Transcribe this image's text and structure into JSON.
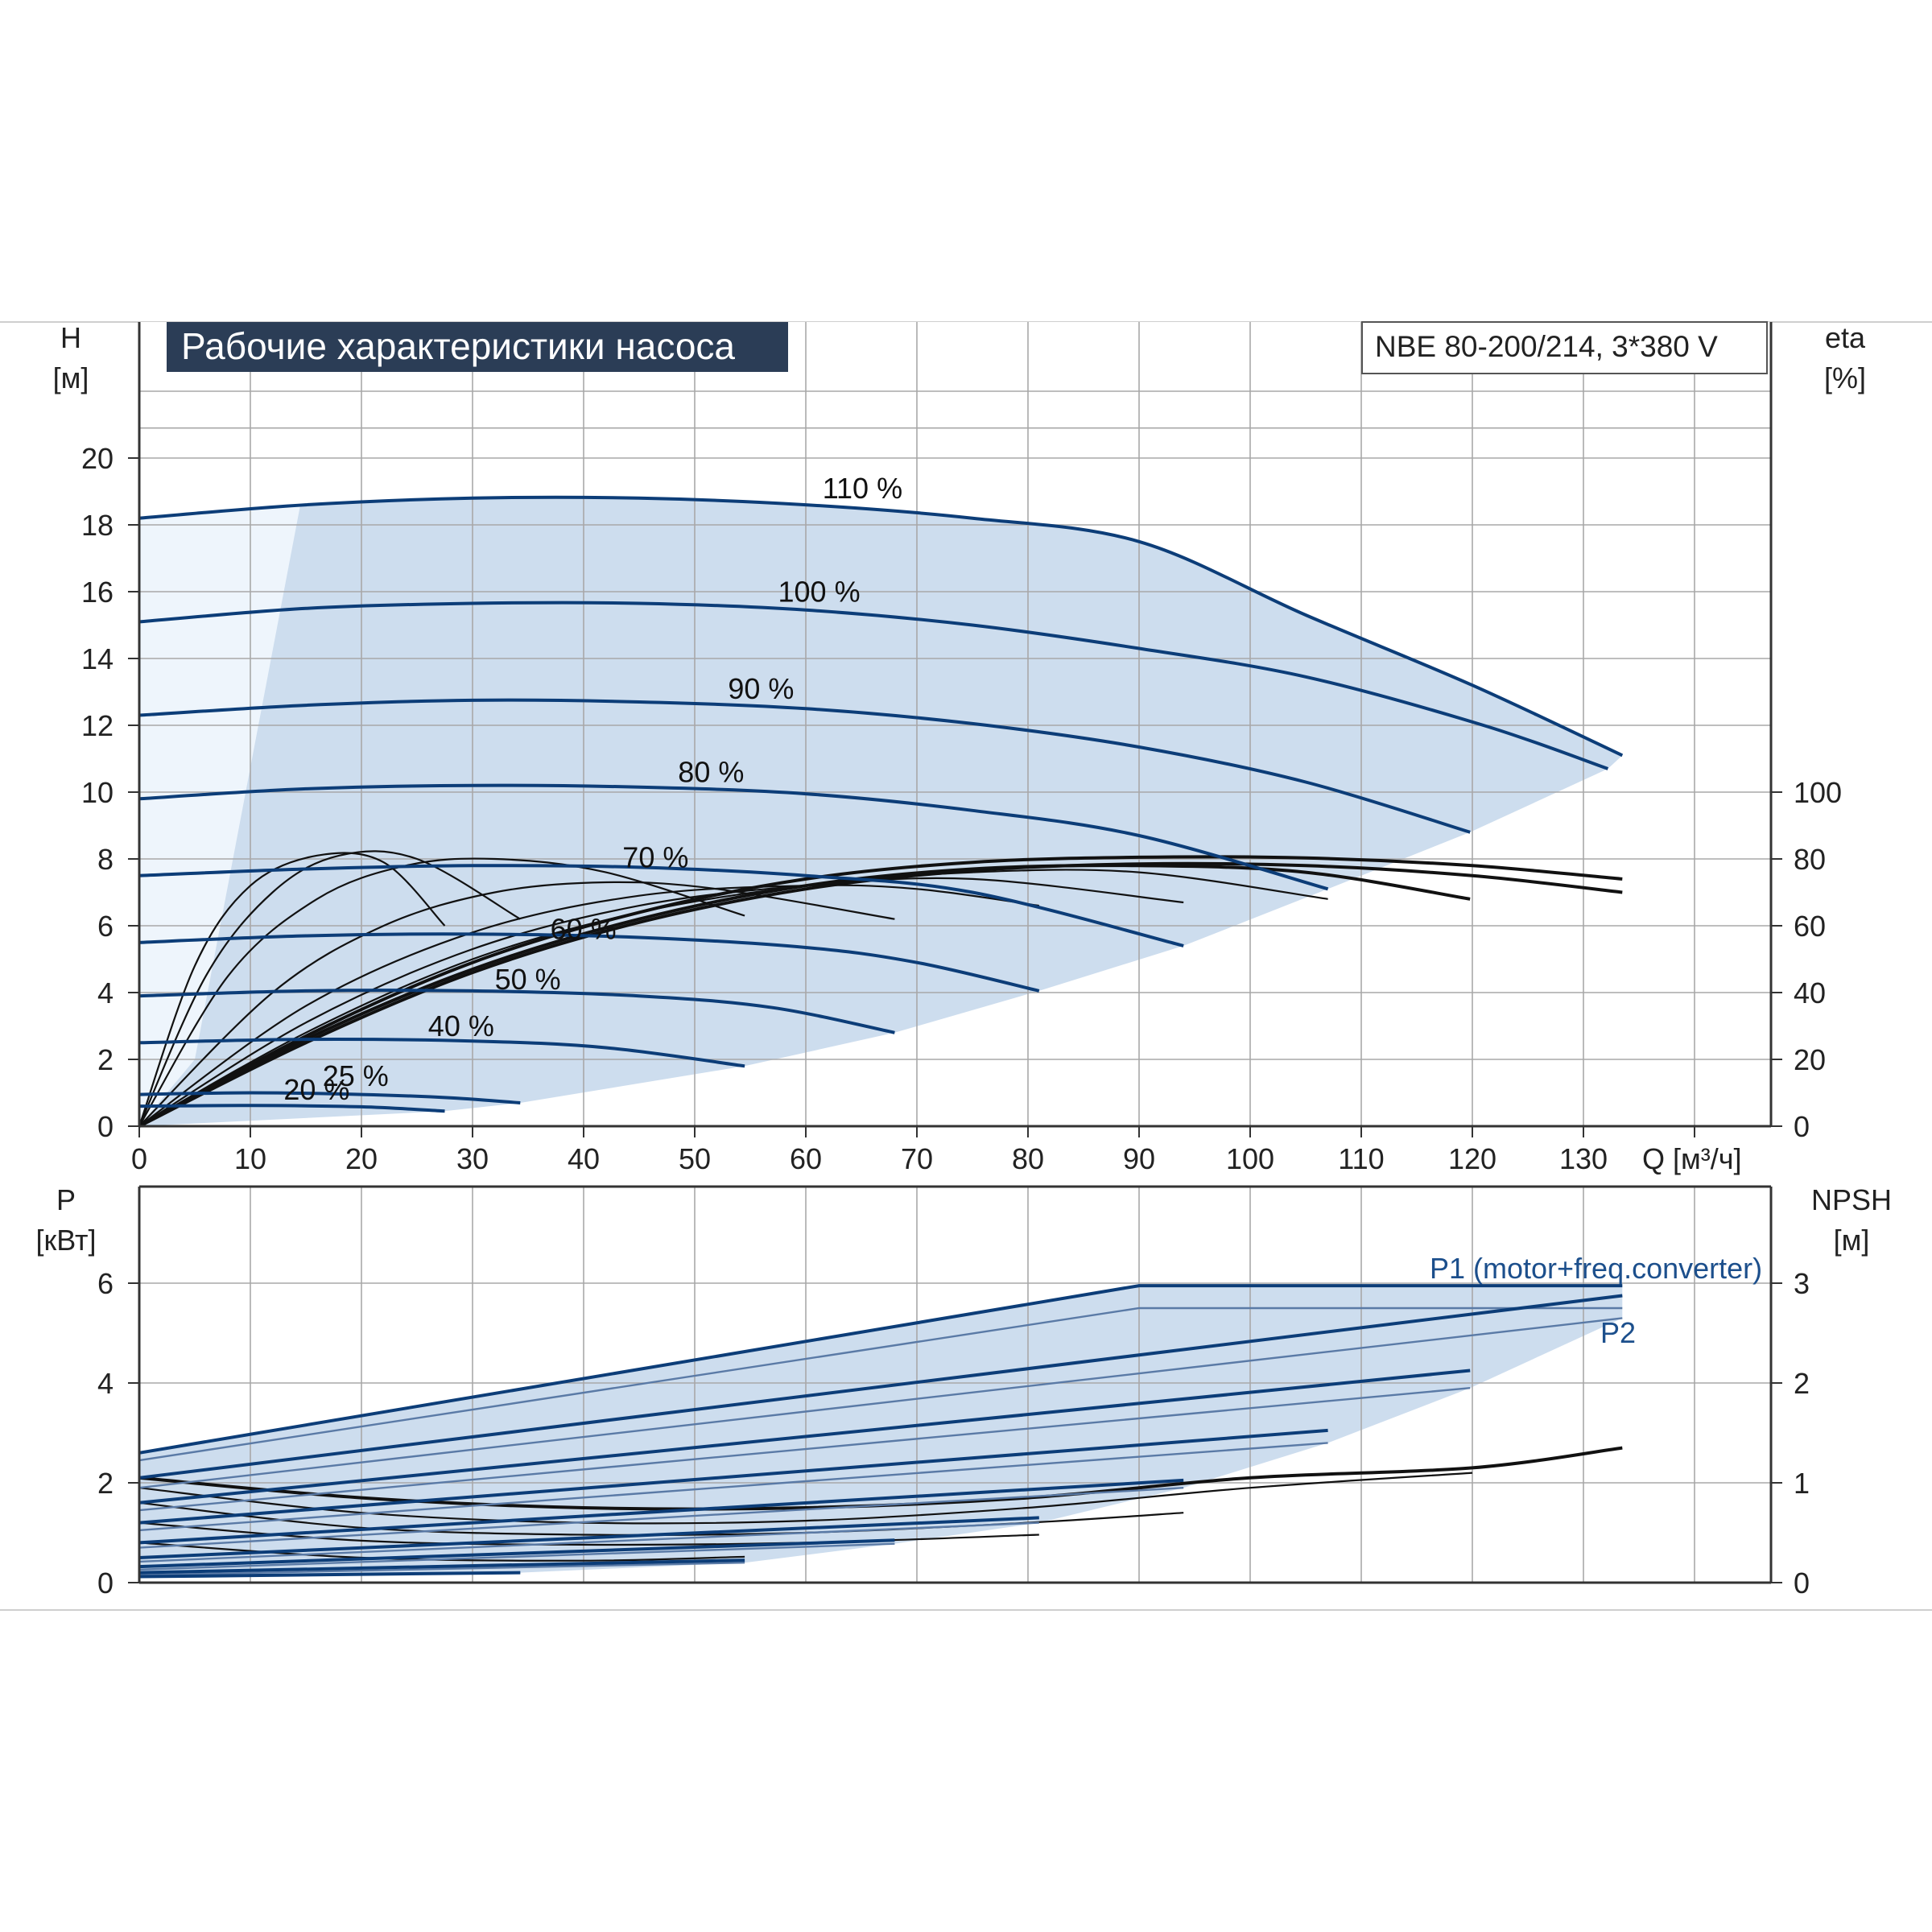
{
  "colors": {
    "curve_blue": "#0c3d78",
    "region_fill": "#cdddee",
    "region_left": "#eef5fc",
    "grid": "#a8a8a8",
    "title_bg": "#2b3d56",
    "eff_black": "#111111"
  },
  "chart_data": [
    {
      "type": "line",
      "title": "Рабочие характеристики насоса",
      "model_label": "NBE 80-200/214, 3*380 V",
      "ylabel_top": "H",
      "ylabel_unit": "[м]",
      "y2label_top": "eta",
      "y2label_unit": "[%]",
      "xlabel": "Q [м³/ч]",
      "xlim": [
        0,
        146
      ],
      "ylim": [
        0,
        20
      ],
      "y2lim": [
        0,
        100
      ],
      "x_ticks": [
        0,
        10,
        20,
        30,
        40,
        50,
        60,
        70,
        80,
        90,
        100,
        110,
        120,
        130
      ],
      "y_ticks": [
        0,
        2,
        4,
        6,
        8,
        10,
        12,
        14,
        16,
        18,
        20
      ],
      "y2_ticks": [
        0,
        20,
        40,
        60,
        80,
        100
      ],
      "grid": true,
      "series": [
        {
          "name": "110 %",
          "x": [
            0,
            15,
            30,
            45,
            60,
            75,
            90,
            105,
            120,
            133.5
          ],
          "y": [
            18.2,
            18.6,
            18.8,
            18.8,
            18.6,
            18.2,
            17.5,
            15.3,
            13.2,
            11.1
          ]
        },
        {
          "name": "100 %",
          "x": [
            0,
            15,
            30,
            45,
            60,
            75,
            90,
            105,
            121,
            132.2
          ],
          "y": [
            15.1,
            15.5,
            15.65,
            15.65,
            15.45,
            15.0,
            14.3,
            13.45,
            12.0,
            10.7
          ]
        },
        {
          "name": "90 %",
          "x": [
            0,
            15,
            30,
            45,
            60,
            75,
            90,
            105,
            119.8
          ],
          "y": [
            12.3,
            12.6,
            12.75,
            12.7,
            12.5,
            12.05,
            11.35,
            10.3,
            8.8
          ]
        },
        {
          "name": "80 %",
          "x": [
            0,
            15,
            30,
            45,
            60,
            75,
            90,
            107
          ],
          "y": [
            9.8,
            10.1,
            10.2,
            10.15,
            9.95,
            9.45,
            8.7,
            7.1
          ]
        },
        {
          "name": "70 %",
          "x": [
            0,
            15,
            30,
            45,
            60,
            75,
            94
          ],
          "y": [
            7.5,
            7.7,
            7.8,
            7.75,
            7.5,
            7.0,
            5.4
          ]
        },
        {
          "name": "60 %",
          "x": [
            0,
            15,
            30,
            45,
            60,
            70,
            81
          ],
          "y": [
            5.5,
            5.7,
            5.75,
            5.65,
            5.35,
            4.9,
            4.05
          ]
        },
        {
          "name": "50 %",
          "x": [
            0,
            15,
            30,
            45,
            57,
            68
          ],
          "y": [
            3.9,
            4.05,
            4.05,
            3.9,
            3.55,
            2.8
          ]
        },
        {
          "name": "40 %",
          "x": [
            0,
            15,
            30,
            42,
            54.5
          ],
          "y": [
            2.5,
            2.6,
            2.55,
            2.35,
            1.8
          ]
        },
        {
          "name": "25 %",
          "x": [
            0,
            10,
            20,
            28,
            34.3
          ],
          "y": [
            0.95,
            1.0,
            0.95,
            0.85,
            0.7
          ]
        },
        {
          "name": "20 %",
          "x": [
            0,
            10,
            20,
            27.5
          ],
          "y": [
            0.6,
            0.62,
            0.58,
            0.45
          ]
        }
      ],
      "efficiency": [
        {
          "x": [
            0,
            15,
            30,
            45,
            60,
            75,
            90,
            105,
            120,
            133.5
          ],
          "y": [
            0,
            27,
            49,
            64,
            74,
            79,
            80.5,
            80.3,
            78,
            74
          ]
        },
        {
          "x": [
            0,
            15,
            30,
            45,
            60,
            75,
            90,
            105,
            120,
            133.5
          ],
          "y": [
            0,
            25,
            46,
            61,
            71,
            76.5,
            78.5,
            78,
            75,
            70
          ]
        },
        {
          "x": [
            0,
            15,
            30,
            45,
            60,
            75,
            90,
            105,
            119.8
          ],
          "y": [
            0,
            26,
            47,
            62,
            72,
            77,
            78,
            76,
            68
          ]
        },
        {
          "x": [
            0,
            15,
            30,
            45,
            60,
            75,
            90,
            107
          ],
          "y": [
            0,
            28,
            50,
            64,
            72,
            76,
            76,
            68
          ]
        },
        {
          "x": [
            0,
            15,
            30,
            45,
            60,
            75,
            94
          ],
          "y": [
            0,
            31,
            53,
            66,
            72,
            74,
            67
          ]
        },
        {
          "x": [
            0,
            15,
            30,
            45,
            60,
            70,
            81
          ],
          "y": [
            0,
            36,
            58,
            69,
            72,
            71,
            66
          ]
        },
        {
          "x": [
            0,
            12,
            22,
            32,
            42,
            52,
            68
          ],
          "y": [
            0,
            40,
            60,
            70,
            73,
            71,
            62
          ]
        },
        {
          "x": [
            0,
            8,
            16,
            24,
            32,
            42,
            54.5
          ],
          "y": [
            0,
            45,
            68,
            78,
            80,
            76,
            63
          ]
        },
        {
          "x": [
            0,
            6,
            12,
            18,
            25,
            34.3
          ],
          "y": [
            0,
            45,
            70,
            81,
            80,
            62
          ]
        },
        {
          "x": [
            0,
            5,
            10,
            16,
            22,
            27.5
          ],
          "y": [
            0,
            48,
            72,
            81,
            79,
            60
          ]
        }
      ]
    },
    {
      "type": "line",
      "ylabel_top": "P",
      "ylabel_unit": "[кВт]",
      "y2label_top": "NPSH",
      "y2label_unit": "[м]",
      "xlim": [
        0,
        146
      ],
      "ylim": [
        0,
        6
      ],
      "y2lim": [
        0,
        3
      ],
      "y_ticks": [
        0,
        2,
        4,
        6
      ],
      "y2_ticks": [
        0,
        1,
        2,
        3
      ],
      "grid": true,
      "annotations": [
        "P1 (motor+freq.converter)",
        "P2"
      ],
      "p1_series": [
        {
          "x": [
            0,
            90,
            133.5
          ],
          "y": [
            2.6,
            5.95,
            5.95
          ]
        },
        {
          "x": [
            0,
            133.5
          ],
          "y": [
            2.1,
            5.75
          ]
        },
        {
          "x": [
            0,
            119.8
          ],
          "y": [
            1.6,
            4.25
          ]
        },
        {
          "x": [
            0,
            107
          ],
          "y": [
            1.2,
            3.05
          ]
        },
        {
          "x": [
            0,
            94
          ],
          "y": [
            0.8,
            2.05
          ]
        },
        {
          "x": [
            0,
            81
          ],
          "y": [
            0.5,
            1.3
          ]
        },
        {
          "x": [
            0,
            68
          ],
          "y": [
            0.32,
            0.85
          ]
        },
        {
          "x": [
            0,
            54.5
          ],
          "y": [
            0.2,
            0.45
          ]
        },
        {
          "x": [
            0,
            34.3
          ],
          "y": [
            0.12,
            0.2
          ]
        }
      ],
      "p2_series": [
        {
          "x": [
            0,
            90,
            133.5
          ],
          "y": [
            2.45,
            5.5,
            5.5
          ]
        },
        {
          "x": [
            0,
            133.5
          ],
          "y": [
            1.9,
            5.3
          ]
        },
        {
          "x": [
            0,
            119.8
          ],
          "y": [
            1.45,
            3.9
          ]
        },
        {
          "x": [
            0,
            107
          ],
          "y": [
            1.05,
            2.8
          ]
        },
        {
          "x": [
            0,
            94
          ],
          "y": [
            0.7,
            1.9
          ]
        },
        {
          "x": [
            0,
            81
          ],
          "y": [
            0.42,
            1.2
          ]
        },
        {
          "x": [
            0,
            68
          ],
          "y": [
            0.26,
            0.78
          ]
        },
        {
          "x": [
            0,
            54.5
          ],
          "y": [
            0.15,
            0.4
          ]
        }
      ],
      "npsh_series": [
        {
          "x": [
            0,
            20,
            40,
            60,
            80,
            100,
            120,
            133.5
          ],
          "y": [
            1.05,
            0.85,
            0.75,
            0.75,
            0.85,
            1.05,
            1.15,
            1.35
          ]
        },
        {
          "x": [
            0,
            20,
            40,
            60,
            80,
            100,
            120
          ],
          "y": [
            0.95,
            0.7,
            0.6,
            0.62,
            0.75,
            0.95,
            1.1
          ]
        },
        {
          "x": [
            0,
            20,
            40,
            60,
            80,
            94
          ],
          "y": [
            0.8,
            0.55,
            0.48,
            0.5,
            0.6,
            0.7
          ]
        },
        {
          "x": [
            0,
            20,
            40,
            60,
            81
          ],
          "y": [
            0.6,
            0.42,
            0.38,
            0.4,
            0.48
          ]
        },
        {
          "x": [
            0,
            20,
            40,
            54.5
          ],
          "y": [
            0.4,
            0.25,
            0.22,
            0.26
          ]
        }
      ]
    }
  ]
}
